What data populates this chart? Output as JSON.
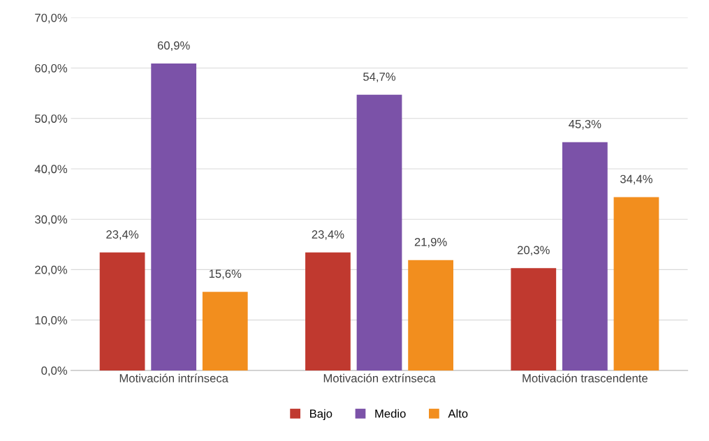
{
  "chart_data": {
    "type": "bar",
    "categories": [
      "Motivación intrínseca",
      "Motivación extrínseca",
      "Motivación trascendente"
    ],
    "series": [
      {
        "name": "Bajo",
        "color": "#c0392f",
        "values": [
          23.4,
          23.4,
          20.3
        ],
        "value_labels": [
          "23,4%",
          "23,4%",
          "20,3%"
        ]
      },
      {
        "name": "Medio",
        "color": "#7b52a8",
        "values": [
          60.9,
          54.7,
          45.3
        ],
        "value_labels": [
          "60,9%",
          "54,7%",
          "45,3%"
        ]
      },
      {
        "name": "Alto",
        "color": "#f28e1e",
        "values": [
          15.6,
          21.9,
          34.4
        ],
        "value_labels": [
          "15,6%",
          "21,9%",
          "34,4%"
        ]
      }
    ],
    "ylim": [
      0,
      70
    ],
    "yticks": [
      {
        "value": 0,
        "label": "0,0%"
      },
      {
        "value": 10,
        "label": "10,0%"
      },
      {
        "value": 20,
        "label": "20,0%"
      },
      {
        "value": 30,
        "label": "30,0%"
      },
      {
        "value": 40,
        "label": "40,0%"
      },
      {
        "value": 50,
        "label": "50,0%"
      },
      {
        "value": 60,
        "label": "60,0%"
      },
      {
        "value": 70,
        "label": "70,0%"
      }
    ],
    "grid": "y",
    "legend": "bottom"
  }
}
